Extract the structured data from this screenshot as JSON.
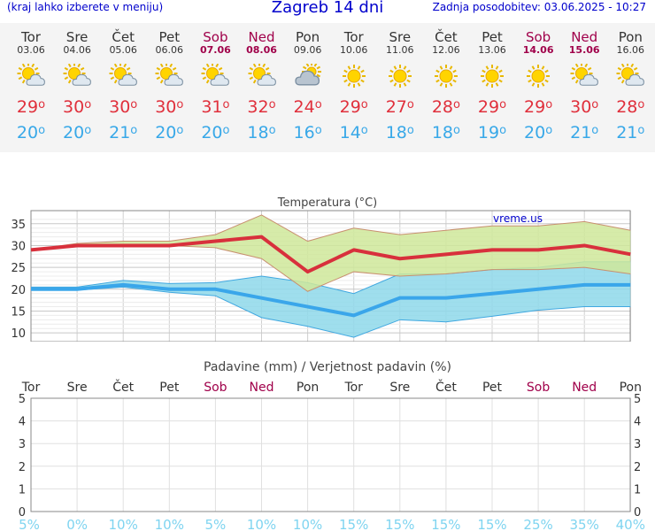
{
  "header": {
    "menu_hint": "(kraj lahko izberete v meniju)",
    "title": "Zagreb 14 dni",
    "updated": "Zadnja posodobitev: 03.06.2025 - 10:27"
  },
  "days": [
    {
      "name": "Tor",
      "date": "03.06",
      "weekend": false,
      "icon": "sun-cloud-icon",
      "max": "29",
      "min": "20"
    },
    {
      "name": "Sre",
      "date": "04.06",
      "weekend": false,
      "icon": "sun-cloud-icon",
      "max": "30",
      "min": "20"
    },
    {
      "name": "Čet",
      "date": "05.06",
      "weekend": false,
      "icon": "sun-cloud-icon",
      "max": "30",
      "min": "21"
    },
    {
      "name": "Pet",
      "date": "06.06",
      "weekend": false,
      "icon": "sun-cloud-icon",
      "max": "30",
      "min": "20"
    },
    {
      "name": "Sob",
      "date": "07.06",
      "weekend": true,
      "icon": "sun-cloud-icon",
      "max": "31",
      "min": "20"
    },
    {
      "name": "Ned",
      "date": "08.06",
      "weekend": true,
      "icon": "sun-cloud-icon",
      "max": "32",
      "min": "18"
    },
    {
      "name": "Pon",
      "date": "09.06",
      "weekend": false,
      "icon": "cloud-sun-icon",
      "max": "24",
      "min": "16"
    },
    {
      "name": "Tor",
      "date": "10.06",
      "weekend": false,
      "icon": "sun-icon",
      "max": "29",
      "min": "14"
    },
    {
      "name": "Sre",
      "date": "11.06",
      "weekend": false,
      "icon": "sun-icon",
      "max": "27",
      "min": "18"
    },
    {
      "name": "Čet",
      "date": "12.06",
      "weekend": false,
      "icon": "sun-icon",
      "max": "28",
      "min": "18"
    },
    {
      "name": "Pet",
      "date": "13.06",
      "weekend": false,
      "icon": "sun-icon",
      "max": "29",
      "min": "19"
    },
    {
      "name": "Sob",
      "date": "14.06",
      "weekend": true,
      "icon": "sun-icon",
      "max": "29",
      "min": "20"
    },
    {
      "name": "Ned",
      "date": "15.06",
      "weekend": true,
      "icon": "sun-cloud-icon",
      "max": "30",
      "min": "21"
    },
    {
      "name": "Pon",
      "date": "16.06",
      "weekend": false,
      "icon": "sun-cloud-icon",
      "max": "28",
      "min": "21"
    }
  ],
  "degree_symbol": "o",
  "chart_data": [
    {
      "type": "line",
      "title": "Temperatura (°C)",
      "watermark": "vreme.us",
      "x": [
        "03.06",
        "04.06",
        "05.06",
        "06.06",
        "07.06",
        "08.06",
        "09.06",
        "10.06",
        "11.06",
        "12.06",
        "13.06",
        "14.06",
        "15.06",
        "16.06"
      ],
      "ylim": [
        8,
        38
      ],
      "yticks": [
        10,
        15,
        20,
        25,
        30,
        35
      ],
      "grid": true,
      "series": [
        {
          "role": "max",
          "values": [
            29,
            30,
            30,
            30,
            31,
            32,
            24,
            29,
            27,
            28,
            29,
            29,
            30,
            28
          ],
          "color": "#d8303c"
        },
        {
          "role": "min",
          "values": [
            20,
            20,
            21,
            20,
            20,
            18,
            16,
            14,
            18,
            18,
            19,
            20,
            21,
            21
          ],
          "color": "#3aa6ea"
        }
      ],
      "max_band": {
        "upper": [
          29,
          30.5,
          31,
          31,
          32.5,
          37,
          31,
          34,
          32.5,
          33.5,
          34.5,
          34.5,
          35.5,
          33.5
        ],
        "lower": [
          29,
          30,
          30,
          30,
          29.5,
          27,
          19.5,
          24,
          23,
          23.5,
          24.5,
          24.5,
          25,
          23.5
        ],
        "color": "#cfe89a"
      },
      "min_band": {
        "upper": [
          20.5,
          20.5,
          22,
          21.3,
          21.5,
          23,
          21.5,
          19,
          23.5,
          23.5,
          24.5,
          25,
          26.3,
          26.3
        ],
        "lower": [
          19.8,
          19.8,
          20.5,
          19.3,
          18.5,
          13.5,
          11.5,
          9,
          13,
          12.5,
          13.8,
          15.2,
          16,
          16
        ],
        "color": "#8ed8ea"
      }
    },
    {
      "type": "bar",
      "title": "Padavine (mm) / Verjetnost padavin (%)",
      "categories": [
        "Tor",
        "Sre",
        "Čet",
        "Pet",
        "Sob",
        "Ned",
        "Pon",
        "Tor",
        "Sre",
        "Čet",
        "Pet",
        "Sob",
        "Ned",
        "Pon"
      ],
      "weekend": [
        false,
        false,
        false,
        false,
        true,
        true,
        false,
        false,
        false,
        false,
        false,
        true,
        true,
        false
      ],
      "values": [
        0,
        0,
        0,
        0,
        0,
        0,
        0,
        0,
        0,
        0,
        0,
        0,
        0,
        0
      ],
      "probability": [
        "5%",
        "0%",
        "10%",
        "10%",
        "5%",
        "10%",
        "10%",
        "15%",
        "15%",
        "15%",
        "15%",
        "25%",
        "35%",
        "40%"
      ],
      "ylim": [
        0,
        5
      ],
      "yticks": [
        0,
        1,
        2,
        3,
        4,
        5
      ],
      "grid": true
    }
  ]
}
